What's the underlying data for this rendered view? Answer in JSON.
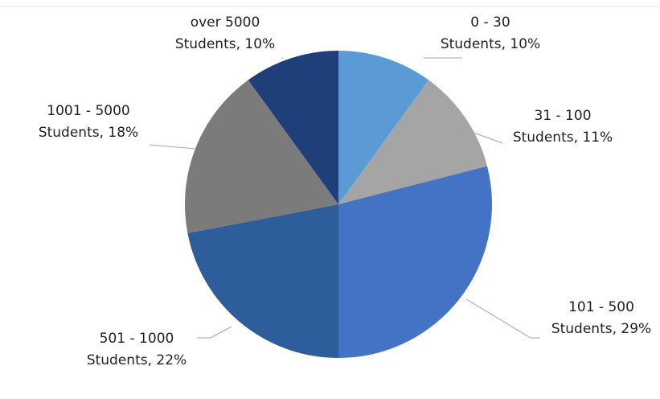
{
  "chart_data": {
    "type": "pie",
    "title": "",
    "slices": [
      {
        "label": "0 - 30",
        "category": "Students",
        "percent_label": "10%",
        "value": 10,
        "color": "#5b9bd5"
      },
      {
        "label": "31 - 100",
        "category": "Students",
        "percent_label": "11%",
        "value": 11,
        "color": "#a5a5a5"
      },
      {
        "label": "101 - 500",
        "category": "Students",
        "percent_label": "29%",
        "value": 29,
        "color": "#4472c4"
      },
      {
        "label": "501 - 1000",
        "category": "Students",
        "percent_label": "22%",
        "value": 22,
        "color": "#2e5d9c"
      },
      {
        "label": "1001 - 5000",
        "category": "Students",
        "percent_label": "18%",
        "value": 18,
        "color": "#7b7b7b"
      },
      {
        "label": "over 5000",
        "category": "Students",
        "percent_label": "10%",
        "value": 10,
        "color": "#1f3f7a"
      }
    ],
    "start_angle": "12 o'clock",
    "direction": "clockwise",
    "legend": "none",
    "data_labels": "outside with leader lines"
  }
}
